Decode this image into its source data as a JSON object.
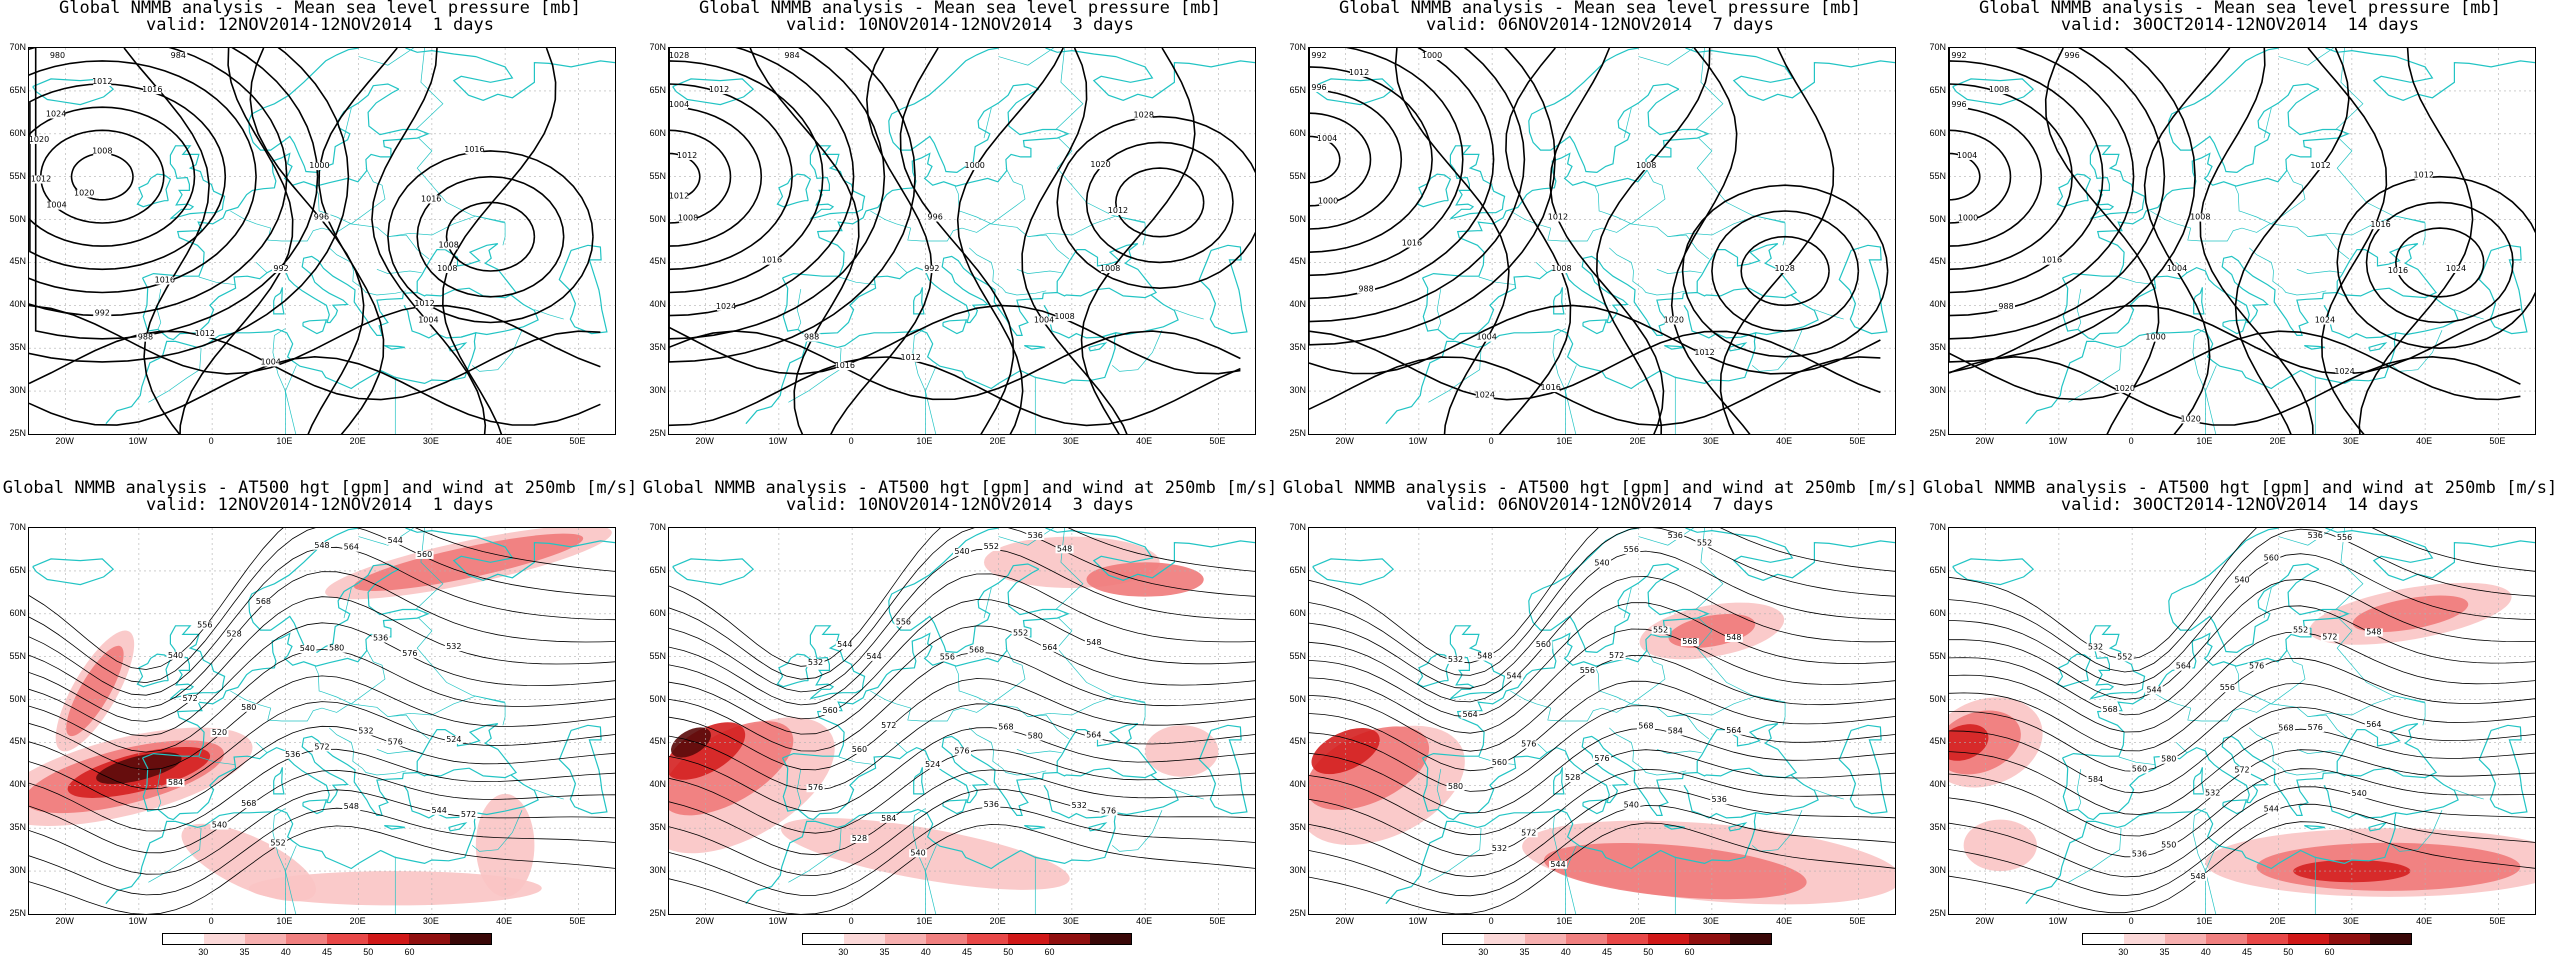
{
  "row1": {
    "title": "Global NMMB analysis - Mean sea level pressure [mb]",
    "panels": [
      {
        "valid": "valid: 12NOV2014-12NOV2014  1 days",
        "contour_labels": [
          "1008",
          "1004",
          "1020",
          "1012",
          "1016",
          "992",
          "980",
          "984",
          "988",
          "992",
          "996",
          "1000",
          "1004",
          "1008",
          "1004",
          "1012",
          "1012",
          "1008",
          "1016",
          "1016",
          "1020",
          "1012",
          "1024",
          "1016"
        ]
      },
      {
        "valid": "valid: 10NOV2014-12NOV2014  3 days",
        "contour_labels": [
          "1012",
          "1008",
          "1004",
          "1012",
          "1016",
          "1024",
          "1028",
          "984",
          "988",
          "992",
          "996",
          "1000",
          "1004",
          "1008",
          "1012",
          "1016",
          "1008",
          "1012",
          "1020",
          "1028",
          "1012"
        ]
      },
      {
        "valid": "valid: 06NOV2014-12NOV2014  7 days",
        "contour_labels": [
          "1004",
          "1000",
          "996",
          "1012",
          "1016",
          "988",
          "992",
          "1000",
          "1004",
          "1008",
          "1012",
          "1008",
          "1020",
          "1028",
          "1016",
          "1024",
          "1012"
        ]
      },
      {
        "valid": "valid: 30OCT2014-12NOV2014  14 days",
        "contour_labels": [
          "1004",
          "1000",
          "996",
          "1008",
          "1016",
          "988",
          "992",
          "996",
          "1000",
          "1004",
          "1008",
          "1012",
          "1024",
          "1024",
          "1020",
          "1020",
          "1024",
          "1016",
          "1016",
          "1012"
        ]
      }
    ]
  },
  "row2": {
    "title": "Global NMMB analysis - AT500 hgt [gpm] and wind at 250mb [m/s]",
    "panels": [
      {
        "valid": "valid: 12NOV2014-12NOV2014  1 days",
        "contour_labels": [
          "540",
          "544",
          "548",
          "528",
          "532",
          "536",
          "540",
          "520",
          "524",
          "532",
          "536",
          "540",
          "544",
          "548",
          "552",
          "556",
          "560",
          "564",
          "568",
          "572",
          "576",
          "580",
          "580",
          "584",
          "576",
          "572",
          "568",
          "572"
        ]
      },
      {
        "valid": "valid: 10NOV2014-12NOV2014  3 days",
        "contour_labels": [
          "532",
          "536",
          "540",
          "544",
          "548",
          "552",
          "556",
          "560",
          "564",
          "568",
          "524",
          "528",
          "532",
          "536",
          "540",
          "544",
          "548",
          "552",
          "556",
          "560",
          "564",
          "568",
          "572",
          "576",
          "580",
          "576",
          "584",
          "576"
        ]
      },
      {
        "valid": "valid: 06NOV2014-12NOV2014  7 days",
        "contour_labels": [
          "532",
          "536",
          "540",
          "544",
          "548",
          "552",
          "556",
          "560",
          "564",
          "568",
          "528",
          "532",
          "536",
          "540",
          "544",
          "548",
          "552",
          "556",
          "560",
          "564",
          "568",
          "572",
          "576",
          "580",
          "584",
          "576",
          "572"
        ]
      },
      {
        "valid": "valid: 30OCT2014-12NOV2014  14 days",
        "contour_labels": [
          "532",
          "536",
          "540",
          "544",
          "548",
          "552",
          "556",
          "560",
          "564",
          "568",
          "532",
          "536",
          "540",
          "544",
          "548",
          "552",
          "556",
          "560",
          "564",
          "568",
          "572",
          "576",
          "580",
          "584",
          "576",
          "572",
          "550"
        ]
      }
    ]
  },
  "lat_labels": [
    "70N",
    "65N",
    "60N",
    "55N",
    "50N",
    "45N",
    "40N",
    "35N",
    "30N",
    "25N"
  ],
  "lon_labels": [
    "20W",
    "10W",
    "0",
    "10E",
    "20E",
    "30E",
    "40E",
    "50E"
  ],
  "colorbar": {
    "labels": [
      "30",
      "35",
      "40",
      "45",
      "50",
      "60"
    ],
    "colors": [
      "#ffffff",
      "#fbd8d8",
      "#f7b0b0",
      "#f08080",
      "#e84848",
      "#d01818",
      "#901010",
      "#3a0808"
    ]
  },
  "colors": {
    "coast": "#22c4c4",
    "contour": "#000000",
    "grid": "#b0b0b0",
    "wind_light": "#f9c4c4",
    "wind_mid": "#f07a7a",
    "wind_strong": "#d42020",
    "wind_max": "#5a0a0a"
  }
}
